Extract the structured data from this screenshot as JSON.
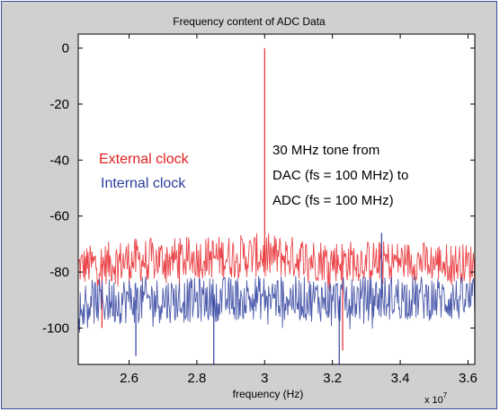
{
  "chart_data": {
    "type": "line",
    "title": "Frequency content of ADC Data",
    "xlabel": "frequency (Hz)",
    "ylabel": "",
    "x_multiplier_label": "x 10",
    "x_multiplier_exp": "7",
    "xlim": [
      2.45,
      3.62
    ],
    "ylim": [
      -113,
      5
    ],
    "x_ticks": [
      2.6,
      2.8,
      3.0,
      3.2,
      3.4,
      3.6
    ],
    "x_tick_labels": [
      "2.6",
      "2.8",
      "3",
      "3.2",
      "3.4",
      "3.6"
    ],
    "y_ticks": [
      0,
      -20,
      -40,
      -60,
      -80,
      -100
    ],
    "y_tick_labels": [
      "0",
      "-20",
      "-40",
      "-60",
      "-80",
      "-100"
    ],
    "grid": false,
    "legend": [
      {
        "name": "External clock",
        "color": "#e02020"
      },
      {
        "name": "Internal clock",
        "color": "#2b3d9b"
      }
    ],
    "annotation": [
      "30 MHz tone from",
      "DAC (fs = 100 MHz) to",
      "ADC (fs = 100 MHz)"
    ],
    "series": [
      {
        "name": "External clock",
        "color": "#e8262a",
        "noise_floor": {
          "x": [
            2.45,
            2.6,
            2.8,
            3.0,
            3.2,
            3.4,
            3.62
          ],
          "mean": [
            -78,
            -76,
            -75,
            -74,
            -76,
            -76,
            -77
          ],
          "min": [
            -88,
            -88,
            -86,
            -85,
            -87,
            -86,
            -88
          ],
          "max": [
            -72,
            -70,
            -69,
            -67,
            -70,
            -70,
            -72
          ]
        },
        "peaks": [
          {
            "x": 3.0,
            "y": 0
          },
          {
            "x": 3.23,
            "y": -108
          },
          {
            "x": 2.52,
            "y": -100
          }
        ]
      },
      {
        "name": "Internal clock",
        "color": "#2e3f9e",
        "noise_floor": {
          "x": [
            2.45,
            2.6,
            2.8,
            3.0,
            3.2,
            3.4,
            3.62
          ],
          "mean": [
            -91,
            -90,
            -90,
            -89,
            -90,
            -89,
            -90
          ],
          "min": [
            -102,
            -102,
            -101,
            -100,
            -101,
            -101,
            -102
          ],
          "max": [
            -84,
            -83,
            -83,
            -82,
            -83,
            -83,
            -84
          ]
        },
        "peaks": [
          {
            "x": 3.345,
            "y": -66
          },
          {
            "x": 2.85,
            "y": -113
          },
          {
            "x": 3.22,
            "y": -113
          },
          {
            "x": 2.62,
            "y": -110
          }
        ]
      }
    ]
  }
}
